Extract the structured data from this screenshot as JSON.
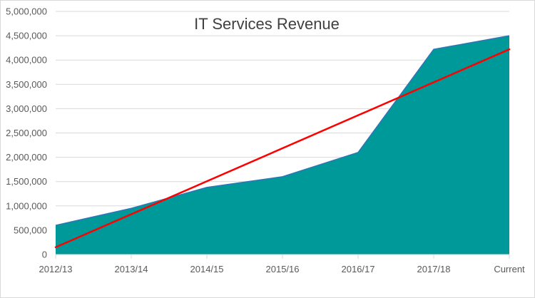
{
  "chart_data": {
    "type": "area",
    "title": "IT Services Revenue",
    "xlabel": "",
    "ylabel": "",
    "categories": [
      "2012/13",
      "2013/14",
      "2014/15",
      "2015/16",
      "2016/17",
      "2017/18",
      "Current"
    ],
    "series": [
      {
        "values": [
          600000,
          950000,
          1380000,
          1600000,
          2100000,
          4220000,
          4500000
        ],
        "color": "#009999"
      }
    ],
    "trendline": {
      "type": "linear",
      "start": 150000,
      "end": 4220000,
      "color": "#ff0000"
    },
    "ylim": [
      0,
      5000000
    ],
    "yticks": [
      0,
      500000,
      1000000,
      1500000,
      2000000,
      2500000,
      3000000,
      3500000,
      4000000,
      4500000,
      5000000
    ],
    "ytick_labels": [
      "0",
      "500,000",
      "1,000,000",
      "1,500,000",
      "2,000,000",
      "2,500,000",
      "3,000,000",
      "3,500,000",
      "4,000,000",
      "4,500,000",
      "5,000,000"
    ],
    "grid": true,
    "legend": "none",
    "colors": {
      "area": "#009999",
      "area_edge": "#2e75b6",
      "trend": "#ff0000",
      "grid": "#d9d9d9",
      "text": "#595959"
    }
  }
}
